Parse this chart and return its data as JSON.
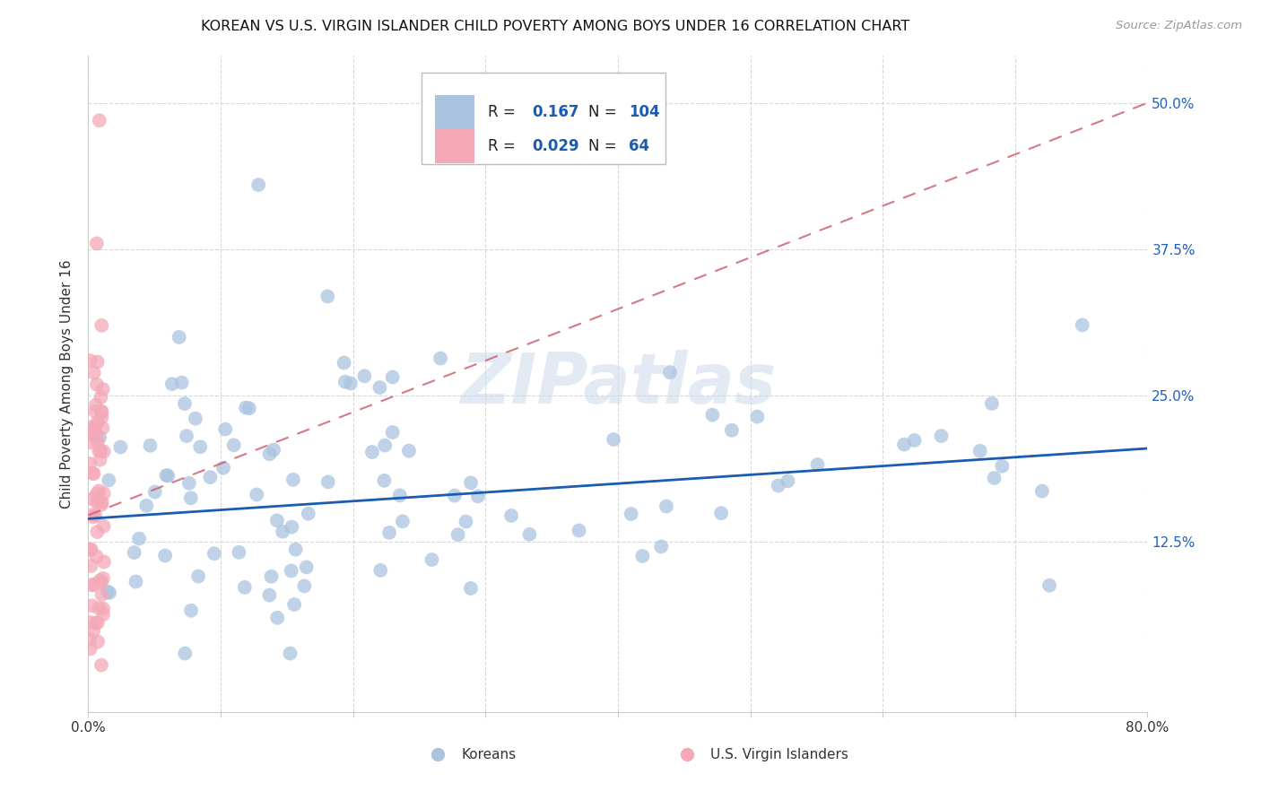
{
  "title": "KOREAN VS U.S. VIRGIN ISLANDER CHILD POVERTY AMONG BOYS UNDER 16 CORRELATION CHART",
  "source": "Source: ZipAtlas.com",
  "ylabel": "Child Poverty Among Boys Under 16",
  "xlim": [
    0.0,
    0.8
  ],
  "ylim": [
    -0.02,
    0.54
  ],
  "ytick_positions": [
    0.125,
    0.25,
    0.375,
    0.5
  ],
  "ytick_labels": [
    "12.5%",
    "25.0%",
    "37.5%",
    "50.0%"
  ],
  "korean_R": 0.167,
  "korean_N": 104,
  "virgin_R": 0.029,
  "virgin_N": 64,
  "korean_color": "#aac4e0",
  "virgin_color": "#f4a8b8",
  "korean_line_color": "#1a5cb0",
  "virgin_line_color": "#d06070",
  "watermark": "ZIPatlas",
  "background_color": "#ffffff",
  "korean_line_x0": 0.0,
  "korean_line_y0": 0.145,
  "korean_line_x1": 0.8,
  "korean_line_y1": 0.205,
  "virgin_line_x0": 0.0,
  "virgin_line_y0": 0.148,
  "virgin_line_x1": 0.8,
  "virgin_line_y1": 0.5
}
